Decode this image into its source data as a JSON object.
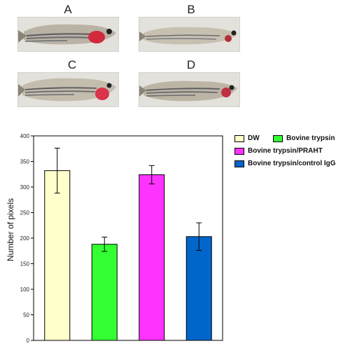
{
  "panels": [
    {
      "label": "A"
    },
    {
      "label": "B"
    },
    {
      "label": "C"
    },
    {
      "label": "D"
    }
  ],
  "chart_data": {
    "type": "bar",
    "categories": [
      "DW",
      "Bovine trypsin",
      "Bovine trypsin/PRAHT",
      "Bovine trypsin/control IgG"
    ],
    "values": [
      332,
      188,
      324,
      203
    ],
    "errors": [
      44,
      14,
      18,
      27
    ],
    "colors": [
      "#ffffcc",
      "#33ff33",
      "#ff33ff",
      "#0066cc"
    ],
    "ylabel": "Number of pixels",
    "ylim": [
      0,
      400
    ],
    "yticks": [
      0,
      50,
      100,
      150,
      200,
      250,
      300,
      350,
      400
    ],
    "grid": false,
    "legend_position": "top-right"
  }
}
